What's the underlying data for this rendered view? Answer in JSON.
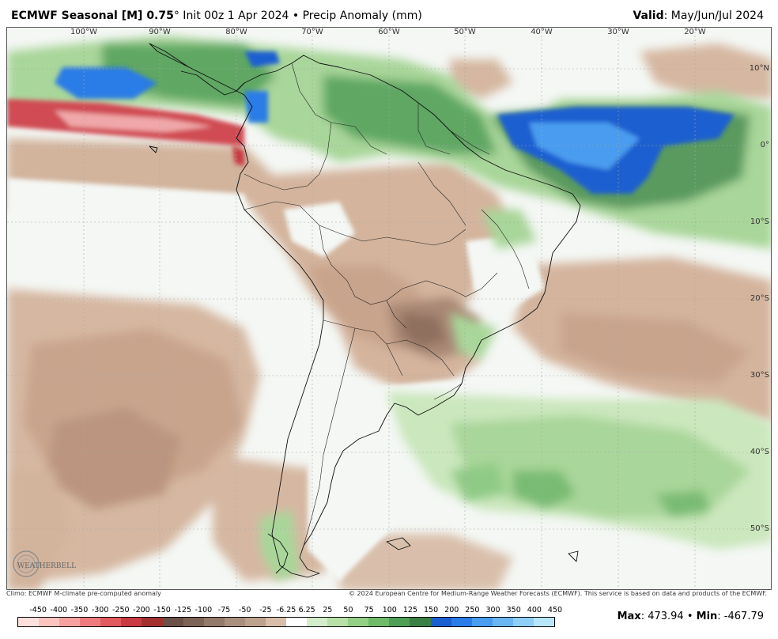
{
  "header": {
    "model": "ECMWF Seasonal [M] 0.75",
    "degree": "°",
    "init": " Init 00z 1 Apr 2024 • Precip Anomaly (mm)",
    "valid_label": "Valid",
    "valid_value": ": May/Jun/Jul 2024"
  },
  "map": {
    "lon_labels": [
      "100°W",
      "90°W",
      "80°W",
      "70°W",
      "60°W",
      "50°W",
      "40°W",
      "30°W",
      "20°W"
    ],
    "lat_labels": [
      "10°N",
      "0°",
      "10°S",
      "20°S",
      "30°S",
      "40°S",
      "50°S"
    ],
    "logo_text": "WEATHERBELL"
  },
  "footer": {
    "climo": "Climo: ECMWF M-climate pre-computed anomaly",
    "copyright": "© 2024 European Centre for Medium-Range Weather Forecasts (ECMWF). This service is based on data and products of the ECMWF."
  },
  "colorbar": {
    "labels": [
      "-450",
      "-400",
      "-350",
      "-300",
      "-250",
      "-200",
      "-150",
      "-125",
      "-100",
      "-75",
      "-50",
      "-25",
      "-6.25",
      "6.25",
      "25",
      "50",
      "75",
      "100",
      "125",
      "150",
      "200",
      "250",
      "300",
      "350",
      "400",
      "450"
    ],
    "colors": [
      "#fde0dd",
      "#fbc4c1",
      "#f7a1a1",
      "#ee7c7f",
      "#e05a5e",
      "#c93a42",
      "#a1302f",
      "#6b5048",
      "#7d6357",
      "#93796a",
      "#a9907e",
      "#bca18d",
      "#d8bda9",
      "#ffffff",
      "#d3ecc9",
      "#b6e0a6",
      "#93cf85",
      "#6fbb6a",
      "#4f9e56",
      "#3a7f45",
      "#1a5fd0",
      "#2b7ce6",
      "#4a9cef",
      "#6ab6f3",
      "#8fcff7",
      "#b7e6fb"
    ]
  },
  "stats": {
    "max_label": "Max",
    "max_value": ": 473.94",
    "sep": " • ",
    "min_label": "Min",
    "min_value": ": -467.79"
  }
}
